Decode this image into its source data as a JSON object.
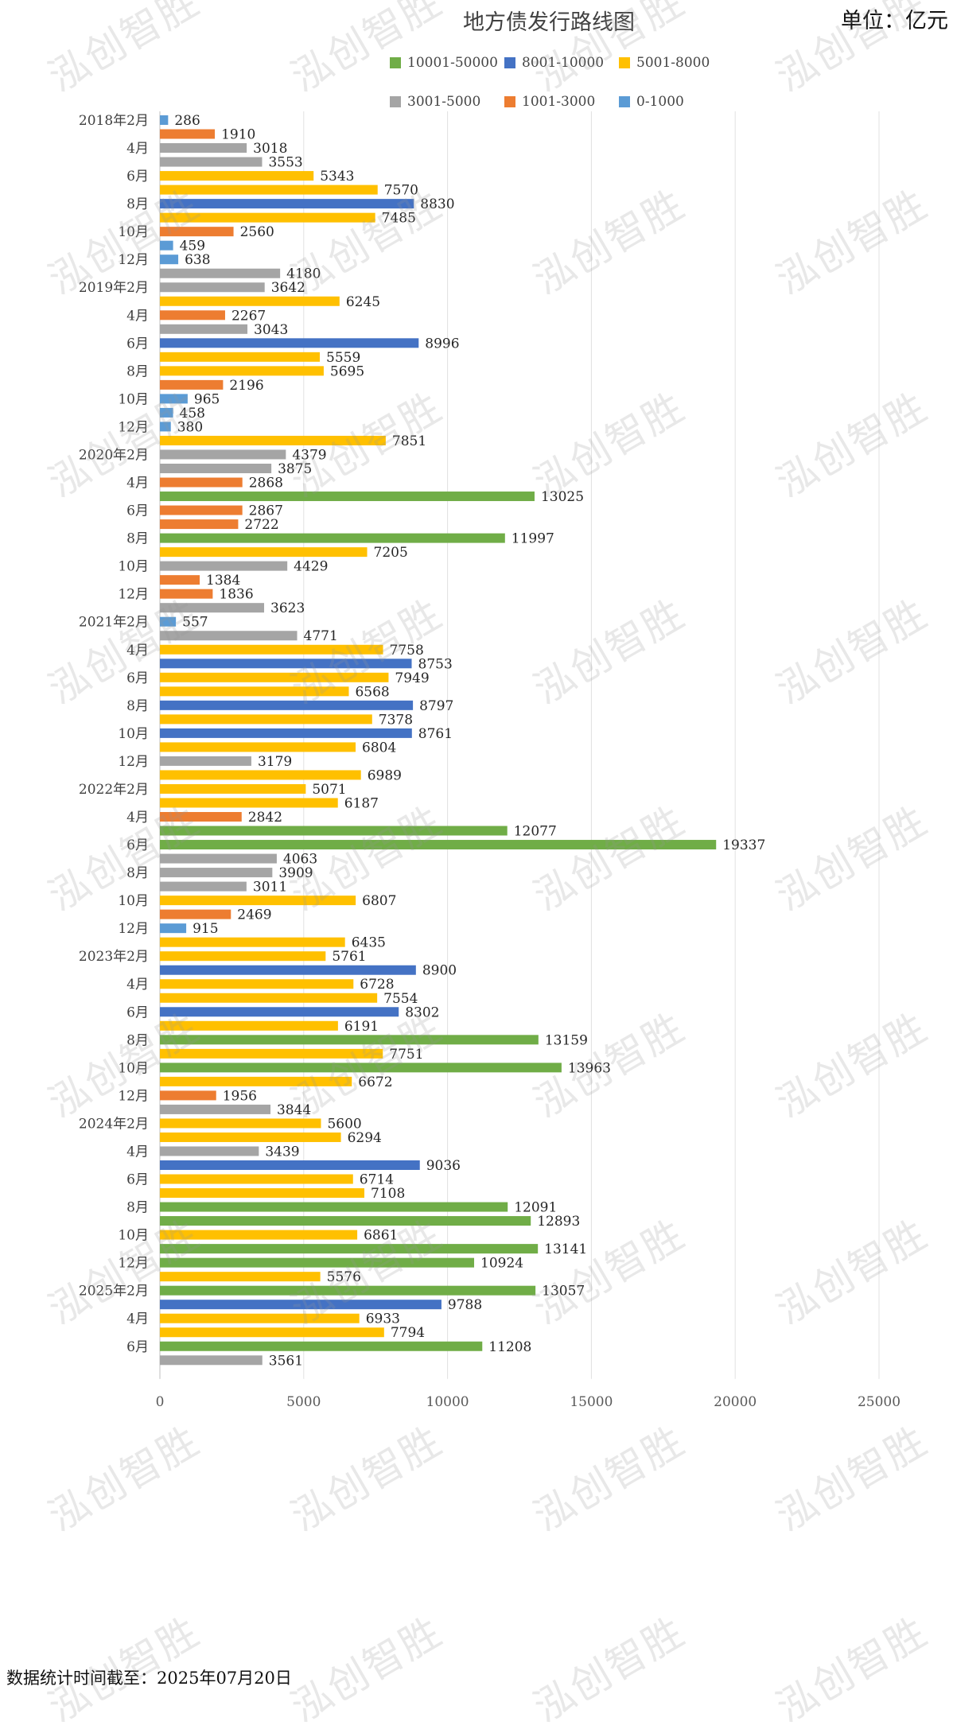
{
  "title": "地方债发行路线图",
  "unit": "单位：亿元",
  "note": "数据统计时间截至：2025年07月20日",
  "watermark": "泓创智胜",
  "categories_legend": [
    {
      "name": "10001-50000",
      "color": "#70AD47"
    },
    {
      "name": "8001-10000",
      "color": "#4472C4"
    },
    {
      "name": "5001-8000",
      "color": "#FFC000"
    },
    {
      "name": "3001-5000",
      "color": "#A5A5A5"
    },
    {
      "name": "1001-3000",
      "color": "#ED7D31"
    },
    {
      "name": "0-1000",
      "color": "#5B9BD5"
    }
  ],
  "chart_data": {
    "type": "bar",
    "orientation": "horizontal",
    "title": "地方债发行路线图",
    "xlim": [
      0,
      25000
    ],
    "x_ticks": [
      "0",
      "5000",
      "10000",
      "15000",
      "20000",
      "25000"
    ],
    "grid": true,
    "legend_position": "top",
    "y_tick_labels": [
      "2018年2月",
      "",
      "4月",
      "",
      "6月",
      "",
      "8月",
      "",
      "10月",
      "",
      "12月",
      "",
      "2019年2月",
      "",
      "4月",
      "",
      "6月",
      "",
      "8月",
      "",
      "10月",
      "",
      "12月",
      "",
      "2020年2月",
      "",
      "4月",
      "",
      "6月",
      "",
      "8月",
      "",
      "10月",
      "",
      "12月",
      "",
      "2021年2月",
      "",
      "4月",
      "",
      "6月",
      "",
      "8月",
      "",
      "10月",
      "",
      "12月",
      "",
      "2022年2月",
      "",
      "4月",
      "",
      "6月",
      "",
      "8月",
      "",
      "10月",
      "",
      "12月",
      "",
      "2023年2月",
      "",
      "4月",
      "",
      "6月",
      "",
      "8月",
      "",
      "10月",
      "",
      "12月",
      "",
      "2024年2月",
      "",
      "4月",
      "",
      "6月",
      "",
      "8月",
      "",
      "10月",
      "",
      "12月",
      "",
      "2025年2月",
      "",
      "4月",
      "",
      "6月",
      ""
    ],
    "values": [
      286,
      1910,
      3018,
      3553,
      5343,
      7570,
      8830,
      7485,
      2560,
      459,
      638,
      4180,
      3642,
      6245,
      2267,
      3043,
      8996,
      5559,
      5695,
      2196,
      965,
      458,
      380,
      7851,
      4379,
      3875,
      2868,
      13025,
      2867,
      2722,
      11997,
      7205,
      4429,
      1384,
      1836,
      3623,
      557,
      4771,
      7758,
      8753,
      7949,
      6568,
      8797,
      7378,
      8761,
      6804,
      3179,
      6989,
      5071,
      6187,
      2842,
      12077,
      19337,
      4063,
      3909,
      3011,
      6807,
      2469,
      915,
      6435,
      5761,
      8900,
      6728,
      7554,
      8302,
      6191,
      13159,
      7751,
      13963,
      6672,
      1956,
      3844,
      5600,
      6294,
      3439,
      9036,
      6714,
      7108,
      12091,
      12893,
      6861,
      13141,
      10924,
      5576,
      13057,
      9788,
      6933,
      7794,
      11208,
      3561
    ]
  }
}
